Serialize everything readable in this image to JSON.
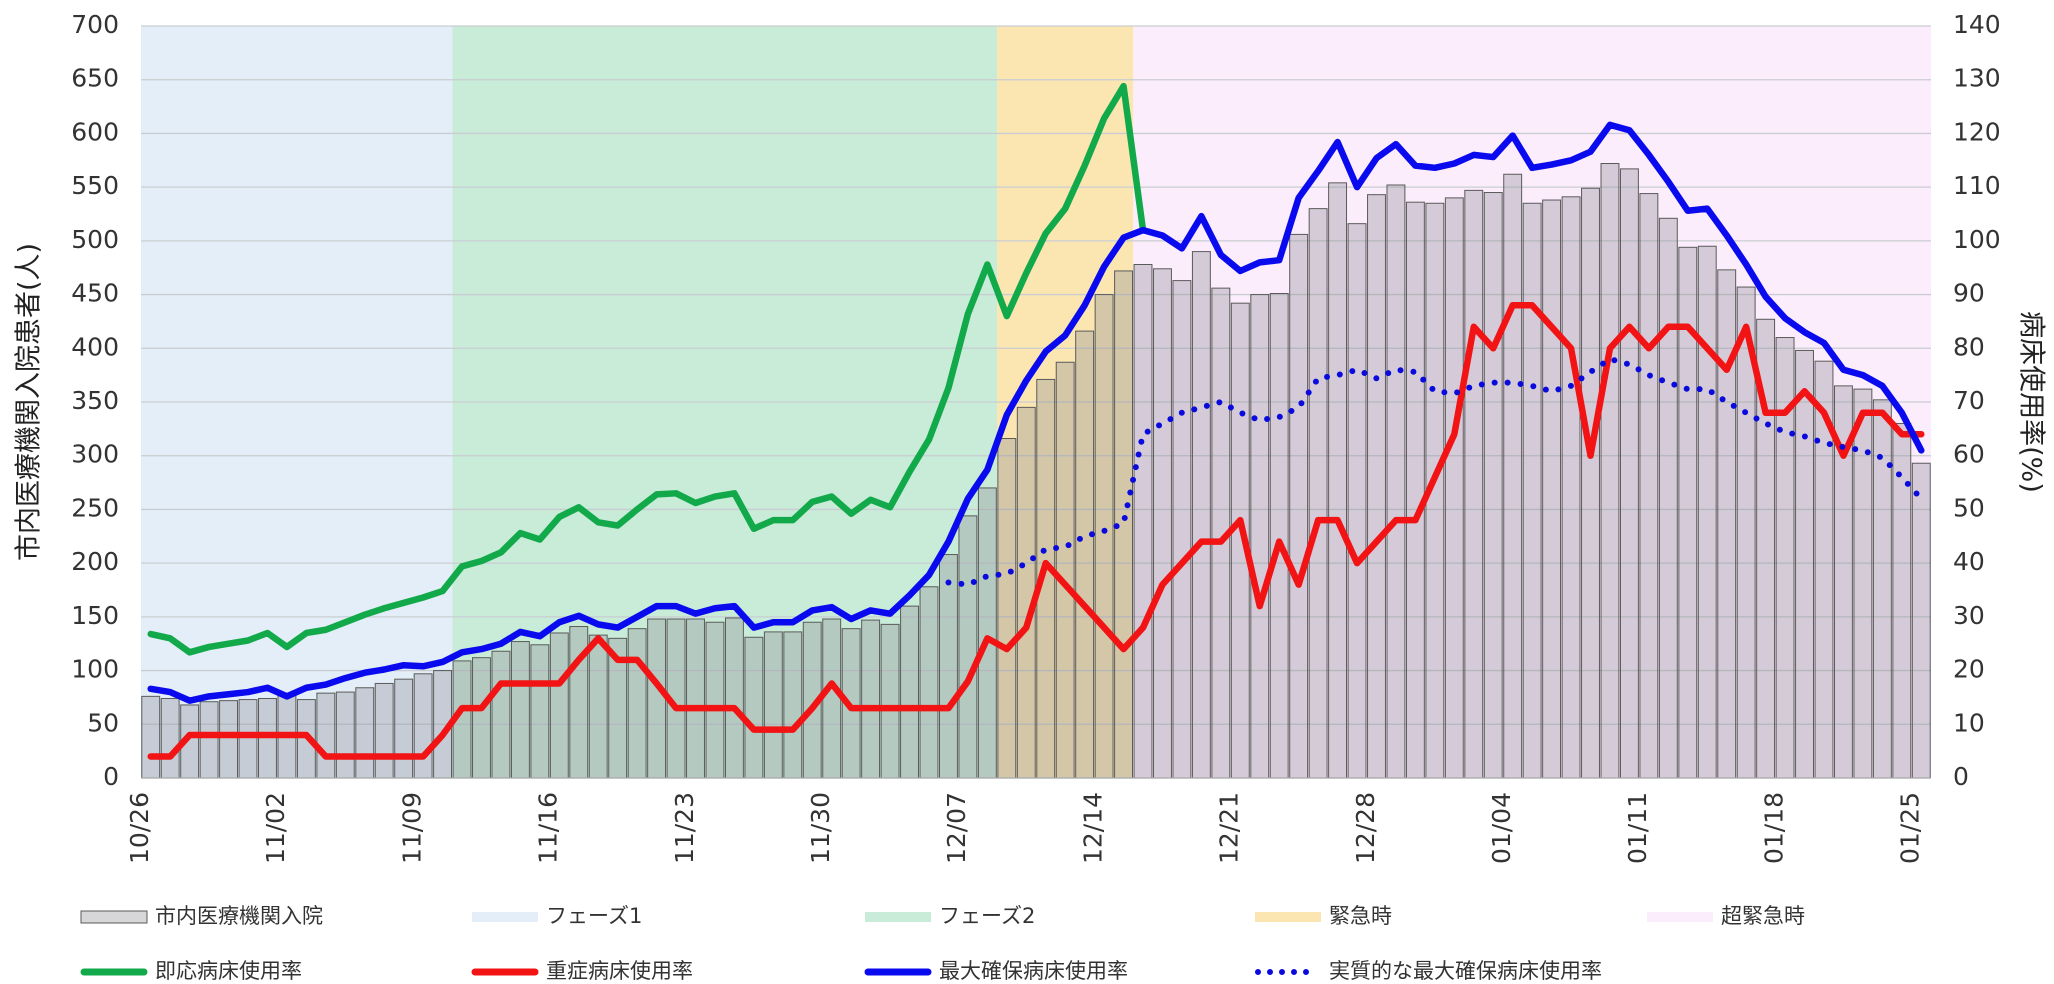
{
  "chart_data": {
    "type": "combo",
    "y_label": "市内医療機関入院患者(人)",
    "y2_label": "病床使用率(%)",
    "categories": [
      "10/26",
      null,
      null,
      null,
      null,
      null,
      null,
      "11/02",
      null,
      null,
      null,
      null,
      null,
      null,
      "11/09",
      null,
      null,
      null,
      null,
      null,
      null,
      "11/16",
      null,
      null,
      null,
      null,
      null,
      null,
      "11/23",
      null,
      null,
      null,
      null,
      null,
      null,
      "11/30",
      null,
      null,
      null,
      null,
      null,
      null,
      "12/07",
      null,
      null,
      null,
      null,
      null,
      null,
      "12/14",
      null,
      null,
      null,
      null,
      null,
      null,
      "12/21",
      null,
      null,
      null,
      null,
      null,
      null,
      "12/28",
      null,
      null,
      null,
      null,
      null,
      null,
      "01/04",
      null,
      null,
      null,
      null,
      null,
      null,
      "01/11",
      null,
      null,
      null,
      null,
      null,
      null,
      "01/18",
      null,
      null,
      null,
      null,
      null,
      null,
      "01/25"
    ],
    "ylim": [
      0,
      700
    ],
    "yticks": [
      0,
      50,
      100,
      150,
      200,
      250,
      300,
      350,
      400,
      450,
      500,
      550,
      600,
      650,
      700
    ],
    "y2lim": [
      0,
      140
    ],
    "y2ticks": [
      0,
      10,
      20,
      30,
      40,
      50,
      60,
      70,
      80,
      90,
      100,
      110,
      120,
      130,
      140
    ],
    "grid": true,
    "phases": [
      {
        "name": "フェーズ1",
        "color": "#e3eef8",
        "span": [
          0,
          16
        ]
      },
      {
        "name": "フェーズ2",
        "color": "#c9ecd9",
        "span": [
          16,
          44
        ]
      },
      {
        "name": "緊急時",
        "color": "#fbe6b2",
        "span": [
          44,
          51
        ]
      },
      {
        "name": "超緊急時",
        "color": "#fcedfc",
        "span": [
          51,
          92
        ]
      }
    ],
    "series": [
      {
        "name": "市内医療機関入院",
        "type": "bar",
        "axis": "y",
        "color": "#8c8c96",
        "values": [
          76,
          74,
          68,
          71,
          72,
          73,
          74,
          78,
          73,
          79,
          80,
          84,
          88,
          92,
          97,
          100,
          109,
          112,
          118,
          127,
          124,
          135,
          141,
          133,
          130,
          139,
          148,
          148,
          148,
          145,
          149,
          131,
          136,
          136,
          145,
          148,
          139,
          147,
          143,
          160,
          178,
          208,
          244,
          270,
          316,
          345,
          371,
          387,
          416,
          450,
          472,
          478,
          474,
          463,
          490,
          456,
          442,
          450,
          451,
          506,
          530,
          554,
          516,
          543,
          552,
          536,
          535,
          540,
          547,
          545,
          562,
          535,
          538,
          541,
          549,
          572,
          567,
          544,
          521,
          494,
          495,
          473,
          457,
          427,
          410,
          398,
          388,
          365,
          362,
          352,
          330,
          293
        ]
      },
      {
        "name": "即応病床使用率",
        "type": "line",
        "axis": "y2",
        "color": "#12a94a",
        "values": [
          26.8,
          26,
          23.4,
          24.4,
          25,
          25.6,
          27,
          24.4,
          27,
          27.6,
          29,
          30.4,
          31.6,
          32.6,
          33.6,
          34.8,
          39.4,
          40.4,
          42,
          45.6,
          44.4,
          48.6,
          50.4,
          47.6,
          47,
          50,
          52.8,
          53,
          51.2,
          52.4,
          53,
          46.4,
          48,
          48,
          51.4,
          52.4,
          49.2,
          51.8,
          50.4,
          57,
          63,
          72.6,
          86.4,
          95.6,
          86,
          94,
          101.4,
          106,
          114,
          122.8,
          128.8,
          102,
          null,
          null,
          null,
          null,
          null,
          null,
          null,
          null,
          null,
          null,
          null,
          null,
          null,
          null,
          null,
          null,
          null,
          null,
          null,
          null,
          null,
          null,
          null,
          null,
          null,
          null,
          null,
          null,
          null,
          null,
          null,
          null,
          null,
          null,
          null,
          null,
          null,
          null,
          null,
          null
        ]
      },
      {
        "name": "重症病床使用率",
        "type": "line",
        "axis": "y2",
        "color": "#f21414",
        "values": [
          4,
          4,
          8,
          8,
          8,
          8,
          8,
          8,
          8,
          4,
          4,
          4,
          4,
          4,
          4,
          8,
          13,
          13,
          17.6,
          17.6,
          17.6,
          17.6,
          22,
          26,
          22,
          22,
          17.6,
          13,
          13,
          13,
          13,
          9,
          9,
          9,
          13,
          17.6,
          13,
          13,
          13,
          13,
          13,
          13,
          18,
          26,
          24,
          28,
          40,
          36,
          32,
          28,
          24,
          28,
          36,
          40,
          44,
          44,
          48,
          32,
          44,
          36,
          48,
          48,
          40,
          44,
          48,
          48,
          56,
          64,
          84,
          80,
          88,
          88,
          84,
          80,
          60,
          80,
          84,
          80,
          84,
          84,
          80,
          76,
          84,
          68,
          68,
          72,
          68,
          60,
          68,
          68,
          64,
          64
        ]
      },
      {
        "name": "最大確保病床使用率",
        "type": "line",
        "axis": "y2",
        "color": "#0a0aee",
        "values": [
          16.6,
          16,
          14.4,
          15.2,
          15.6,
          16,
          16.8,
          15.2,
          16.8,
          17.4,
          18.6,
          19.6,
          20.2,
          21,
          20.8,
          21.6,
          23.4,
          24,
          25,
          27.2,
          26.4,
          29,
          30.2,
          28.6,
          28,
          30,
          32,
          32,
          30.6,
          31.6,
          32,
          28,
          29,
          29,
          31.2,
          31.8,
          29.6,
          31.2,
          30.6,
          34,
          37.8,
          44,
          52,
          57.4,
          67.6,
          74,
          79.4,
          82.4,
          88,
          95.2,
          100.6,
          102,
          101,
          98.6,
          104.6,
          97.4,
          94.4,
          96,
          96.4,
          108,
          113,
          118.4,
          110,
          115.4,
          118,
          114,
          113.6,
          114.4,
          116,
          115.6,
          119.6,
          113.6,
          114.2,
          115,
          116.6,
          121.6,
          120.6,
          116,
          111,
          105.6,
          106,
          101,
          95.6,
          89.6,
          85.6,
          83,
          81,
          76,
          75,
          73,
          68,
          61
        ]
      },
      {
        "name": "実質的な最大確保病床使用率",
        "type": "line",
        "axis": "y2",
        "color": "#0a0add",
        "dotted": true,
        "values": [
          null,
          null,
          null,
          null,
          null,
          null,
          null,
          null,
          null,
          null,
          null,
          null,
          null,
          null,
          null,
          null,
          null,
          null,
          null,
          null,
          null,
          null,
          null,
          null,
          null,
          null,
          null,
          null,
          null,
          null,
          null,
          null,
          null,
          null,
          null,
          null,
          null,
          null,
          null,
          null,
          null,
          36.4,
          36,
          37.6,
          38,
          40,
          42.6,
          43,
          45,
          46,
          47.4,
          64,
          66,
          68,
          69,
          70,
          68,
          66.6,
          67.2,
          69,
          74.4,
          75,
          76,
          74.4,
          76,
          75.6,
          72,
          71.6,
          73,
          73.6,
          73.6,
          73,
          72,
          73,
          75.6,
          78,
          77,
          75,
          73.6,
          72.4,
          72.4,
          70,
          68,
          66,
          64.4,
          63.6,
          62.4,
          61.6,
          61,
          59.6,
          56,
          52
        ]
      }
    ]
  }
}
